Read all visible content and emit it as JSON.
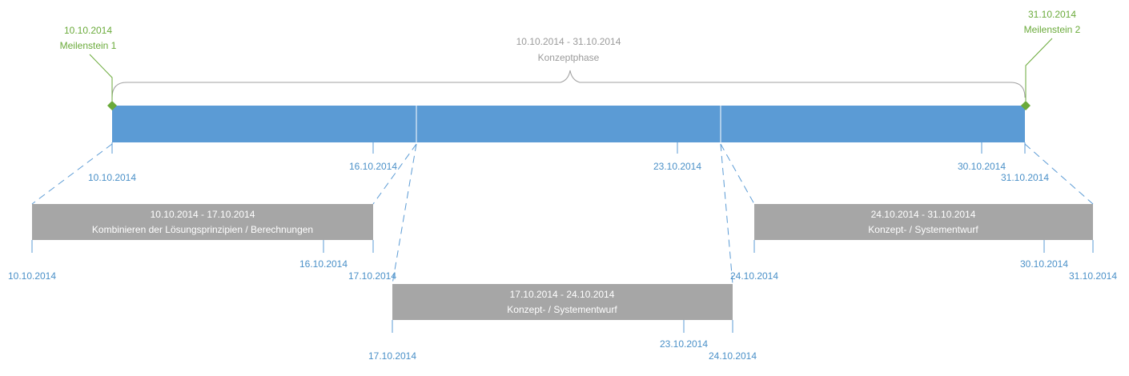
{
  "colors": {
    "main_bar": "#5b9bd5",
    "sub_bar": "#a6a6a6",
    "date_text": "#4a90c8",
    "milestone": "#6aaa3a",
    "phase_text": "#9b9b9b",
    "bracket": "#a0a0a0",
    "bar_text": "#ffffff",
    "tick": "#5b9bd5"
  },
  "milestones": [
    {
      "date": "10.10.2014",
      "label": "Meilenstein 1"
    },
    {
      "date": "31.10.2014",
      "label": "Meilenstein 2"
    }
  ],
  "phase": {
    "range": "10.10.2014 - 31.10.2014",
    "label": "Konzeptphase"
  },
  "main_timeline": {
    "start_label": "10.10.2014",
    "end_label": "31.10.2014",
    "tick_labels": [
      "16.10.2014",
      "23.10.2014",
      "30.10.2014"
    ]
  },
  "tasks": [
    {
      "range": "10.10.2014 - 17.10.2014",
      "name": "Kombinieren der Lösungsprinzipien / Berechnungen",
      "start_label": "10.10.2014",
      "end_label": "17.10.2014",
      "tick_label": "16.10.2014"
    },
    {
      "range": "17.10.2014 - 24.10.2014",
      "name": "Konzept- / Systementwurf",
      "start_label": "17.10.2014",
      "end_label": "24.10.2014",
      "tick_label": "23.10.2014"
    },
    {
      "range": "24.10.2014 - 31.10.2014",
      "name": "Konzept- / Systementwurf",
      "start_label": "24.10.2014",
      "end_label": "31.10.2014",
      "tick_label": "30.10.2014"
    }
  ]
}
